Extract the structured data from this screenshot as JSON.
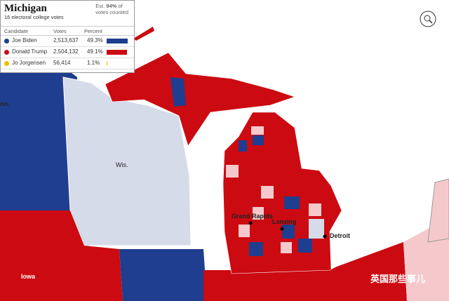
{
  "panel": {
    "title": "Michigan",
    "subtitle": "16 electoral college votes",
    "note_prefix": "Est.",
    "note_value": "94%",
    "note_suffix": "of",
    "note_line2": "votes counted",
    "columns": [
      "Candidate",
      "Votes",
      "Percent"
    ],
    "rows": [
      {
        "name": "Joe Biden",
        "votes": "2,513,637",
        "percent": {
          "value": 49.3,
          "label": "49.3%"
        },
        "color": "#1f3e8f"
      },
      {
        "name": "Donald Trump",
        "votes": "2,504,132",
        "percent": {
          "value": 49.1,
          "label": "49.1%"
        },
        "color": "#cc0a11"
      },
      {
        "name": "Jo Jorgensen",
        "votes": "56,414",
        "percent": {
          "value": 1.1,
          "label": "1.1%"
        },
        "color": "#e8c200"
      }
    ]
  },
  "map": {
    "labels": [
      "nn.",
      "Wis.",
      "Grand Rapids",
      "Lansing",
      "Detroit",
      "Iowa"
    ]
  },
  "watermark": "英国那些事儿"
}
